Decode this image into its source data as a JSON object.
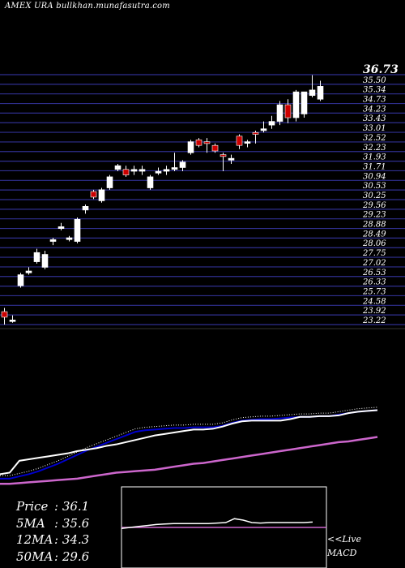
{
  "header": {
    "title": "AMEX  URA bullkhan.munafasutra.com"
  },
  "stats": {
    "price_label": "Price",
    "price_value": ": 36.1",
    "ma5_label": "5MA",
    "ma5_value": ": 35.6",
    "ma12_label": "12MA",
    "ma12_value": ": 34.3",
    "ma50_label": "50MA",
    "ma50_value": ": 29.6"
  },
  "macd": {
    "live_label": "<<Live",
    "label": "MACD"
  },
  "colors": {
    "background": "#000000",
    "grid": "#2f2f8f",
    "up_candle": "#ffffff",
    "down_candle": "#cc0000",
    "ma_short": "#ffffff",
    "ma_mid": "#0000cc",
    "ma_long": "#cc66cc",
    "macd_line": "#ffffff",
    "macd_signal": "#cc66cc"
  },
  "chart_data": {
    "type": "candlestick",
    "grid": true,
    "y_ticks": [
      "36.73",
      "35.50",
      "35.34",
      "34.73",
      "34.23",
      "33.43",
      "33.01",
      "32.52",
      "32.23",
      "31.93",
      "31.71",
      "30.94",
      "30.53",
      "30.25",
      "29.56",
      "29.23",
      "28.88",
      "28.49",
      "28.06",
      "27.75",
      "27.02",
      "26.53",
      "26.33",
      "25.73",
      "24.58",
      "23.92",
      "23.22"
    ],
    "candles": [
      {
        "o": 23.9,
        "h": 24.1,
        "l": 23.2,
        "c": 23.6
      },
      {
        "o": 23.4,
        "h": 23.7,
        "l": 23.3,
        "c": 23.45
      },
      {
        "o": 25.3,
        "h": 26.0,
        "l": 25.2,
        "c": 25.9
      },
      {
        "o": 26.0,
        "h": 26.3,
        "l": 25.9,
        "c": 26.1
      },
      {
        "o": 26.6,
        "h": 27.3,
        "l": 26.5,
        "c": 27.1
      },
      {
        "o": 26.3,
        "h": 27.2,
        "l": 26.2,
        "c": 27.0
      },
      {
        "o": 27.7,
        "h": 27.9,
        "l": 27.5,
        "c": 27.8
      },
      {
        "o": 28.4,
        "h": 28.7,
        "l": 28.3,
        "c": 28.5
      },
      {
        "o": 27.8,
        "h": 28.0,
        "l": 27.7,
        "c": 27.9
      },
      {
        "o": 27.7,
        "h": 29.0,
        "l": 27.6,
        "c": 28.9
      },
      {
        "o": 29.4,
        "h": 29.7,
        "l": 29.2,
        "c": 29.6
      },
      {
        "o": 30.4,
        "h": 30.5,
        "l": 30.0,
        "c": 30.1
      },
      {
        "o": 29.9,
        "h": 30.6,
        "l": 29.8,
        "c": 30.5
      },
      {
        "o": 30.6,
        "h": 31.3,
        "l": 30.5,
        "c": 31.2
      },
      {
        "o": 31.6,
        "h": 31.9,
        "l": 31.5,
        "c": 31.8
      },
      {
        "o": 31.6,
        "h": 31.8,
        "l": 31.2,
        "c": 31.3
      },
      {
        "o": 31.5,
        "h": 31.8,
        "l": 31.3,
        "c": 31.6
      },
      {
        "o": 31.5,
        "h": 31.8,
        "l": 31.3,
        "c": 31.6
      },
      {
        "o": 30.6,
        "h": 31.3,
        "l": 30.5,
        "c": 31.2
      },
      {
        "o": 31.4,
        "h": 31.7,
        "l": 31.3,
        "c": 31.5
      },
      {
        "o": 31.5,
        "h": 31.8,
        "l": 31.3,
        "c": 31.6
      },
      {
        "o": 31.6,
        "h": 32.5,
        "l": 31.5,
        "c": 31.7
      },
      {
        "o": 31.7,
        "h": 32.1,
        "l": 31.5,
        "c": 32.0
      },
      {
        "o": 32.5,
        "h": 33.2,
        "l": 32.4,
        "c": 33.1
      },
      {
        "o": 33.2,
        "h": 33.3,
        "l": 32.8,
        "c": 32.9
      },
      {
        "o": 33.1,
        "h": 33.3,
        "l": 32.5,
        "c": 33.0
      },
      {
        "o": 32.9,
        "h": 33.0,
        "l": 32.5,
        "c": 32.6
      },
      {
        "o": 32.4,
        "h": 32.5,
        "l": 31.5,
        "c": 32.3
      },
      {
        "o": 32.1,
        "h": 32.4,
        "l": 31.9,
        "c": 32.2
      },
      {
        "o": 33.4,
        "h": 33.5,
        "l": 32.7,
        "c": 32.9
      },
      {
        "o": 33.1,
        "h": 33.2,
        "l": 32.8,
        "c": 33.1
      },
      {
        "o": 33.6,
        "h": 33.7,
        "l": 33.0,
        "c": 33.5
      },
      {
        "o": 33.7,
        "h": 34.2,
        "l": 33.6,
        "c": 33.8
      },
      {
        "o": 34.0,
        "h": 34.5,
        "l": 33.8,
        "c": 34.2
      },
      {
        "o": 34.2,
        "h": 35.3,
        "l": 34.0,
        "c": 35.1
      },
      {
        "o": 35.1,
        "h": 35.4,
        "l": 34.1,
        "c": 34.4
      },
      {
        "o": 34.4,
        "h": 35.9,
        "l": 34.2,
        "c": 35.8
      },
      {
        "o": 34.6,
        "h": 35.8,
        "l": 34.4,
        "c": 35.8
      },
      {
        "o": 35.6,
        "h": 36.7,
        "l": 35.5,
        "c": 35.9
      },
      {
        "o": 35.4,
        "h": 36.4,
        "l": 35.3,
        "c": 36.1
      }
    ],
    "moving_averages": {
      "ma5": [
        0.28,
        0.3,
        0.46,
        0.48,
        0.5,
        0.52,
        0.54,
        0.56,
        0.59,
        0.61,
        0.63,
        0.66,
        0.68,
        0.71,
        0.74,
        0.77,
        0.8,
        0.82,
        0.84,
        0.86,
        0.88,
        0.88,
        0.89,
        0.92,
        0.96,
        0.99,
        1.0,
        1.0,
        1.0,
        1.0,
        1.02,
        1.05,
        1.05,
        1.06,
        1.06,
        1.07,
        1.1,
        1.12,
        1.13,
        1.14
      ],
      "ma12": [
        0.22,
        0.22,
        0.25,
        0.28,
        0.32,
        0.37,
        0.42,
        0.48,
        0.54,
        0.6,
        0.65,
        0.7,
        0.75,
        0.8,
        0.85,
        0.87,
        0.88,
        0.89,
        0.9,
        0.9,
        0.91,
        0.91,
        0.91,
        0.93,
        0.97,
        1.0,
        1.01,
        1.02,
        1.02,
        1.03,
        1.04,
        1.05,
        1.05,
        1.06,
        1.06,
        1.08,
        1.1,
        1.12,
        1.13,
        1.14
      ],
      "ma50": [
        0.15,
        0.15,
        0.16,
        0.17,
        0.18,
        0.19,
        0.2,
        0.21,
        0.22,
        0.24,
        0.26,
        0.28,
        0.3,
        0.31,
        0.32,
        0.33,
        0.34,
        0.36,
        0.38,
        0.4,
        0.42,
        0.43,
        0.45,
        0.47,
        0.49,
        0.51,
        0.53,
        0.55,
        0.57,
        0.59,
        0.61,
        0.63,
        0.65,
        0.67,
        0.69,
        0.71,
        0.72,
        0.74,
        0.76,
        0.78
      ]
    },
    "macd": {
      "macd": [
        0.48,
        0.5,
        0.52,
        0.54,
        0.56,
        0.57,
        0.58,
        0.58,
        0.58,
        0.58,
        0.58,
        0.59,
        0.6,
        0.68,
        0.65,
        0.6,
        0.59,
        0.6,
        0.6,
        0.6,
        0.6,
        0.6,
        0.61
      ],
      "signal": 0.5
    }
  }
}
